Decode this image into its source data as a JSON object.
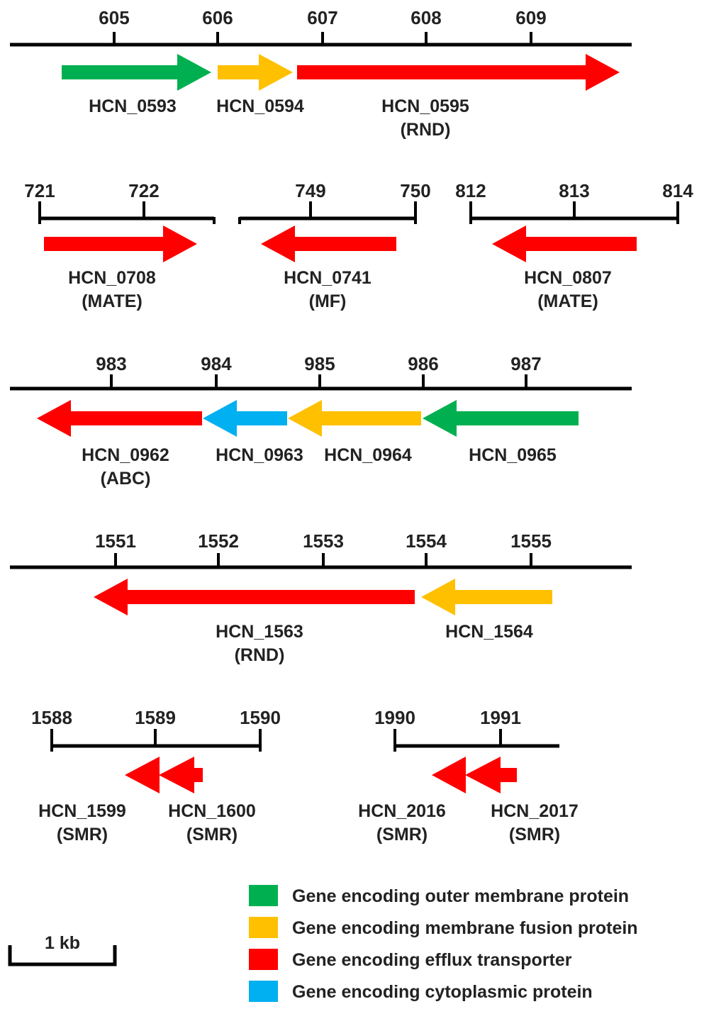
{
  "colors": {
    "outer": "#00B050",
    "fusion": "#FFC000",
    "efflux": "#FF0000",
    "cyto": "#00B0F0",
    "line": "#000000"
  },
  "tracks": [
    {
      "ticks": [
        "605",
        "606",
        "607",
        "608",
        "609"
      ],
      "genes": [
        {
          "name": "HCN_0593",
          "family": "",
          "role": "outer",
          "strand": "+"
        },
        {
          "name": "HCN_0594",
          "family": "",
          "role": "fusion",
          "strand": "+"
        },
        {
          "name": "HCN_0595",
          "family": "(RND)",
          "role": "efflux",
          "strand": "+"
        }
      ]
    },
    {
      "ticks": [
        "721",
        "722"
      ],
      "genes": [
        {
          "name": "HCN_0708",
          "family": "(MATE)",
          "role": "efflux",
          "strand": "+"
        }
      ]
    },
    {
      "ticks": [
        "749",
        "750"
      ],
      "genes": [
        {
          "name": "HCN_0741",
          "family": "(MF)",
          "role": "efflux",
          "strand": "-"
        }
      ]
    },
    {
      "ticks": [
        "812",
        "813",
        "814"
      ],
      "genes": [
        {
          "name": "HCN_0807",
          "family": "(MATE)",
          "role": "efflux",
          "strand": "-"
        }
      ]
    },
    {
      "ticks": [
        "983",
        "984",
        "985",
        "986",
        "987"
      ],
      "genes": [
        {
          "name": "HCN_0962",
          "family": "(ABC)",
          "role": "efflux",
          "strand": "-"
        },
        {
          "name": "HCN_0963",
          "family": "",
          "role": "cyto",
          "strand": "-"
        },
        {
          "name": "HCN_0964",
          "family": "",
          "role": "fusion",
          "strand": "-"
        },
        {
          "name": "HCN_0965",
          "family": "",
          "role": "outer",
          "strand": "-"
        }
      ]
    },
    {
      "ticks": [
        "1551",
        "1552",
        "1553",
        "1554",
        "1555"
      ],
      "genes": [
        {
          "name": "HCN_1563",
          "family": "(RND)",
          "role": "efflux",
          "strand": "-"
        },
        {
          "name": "HCN_1564",
          "family": "",
          "role": "fusion",
          "strand": "-"
        }
      ]
    },
    {
      "ticks": [
        "1588",
        "1589",
        "1590"
      ],
      "genes": [
        {
          "name": "HCN_1599",
          "family": "(SMR)",
          "role": "efflux",
          "strand": "-"
        },
        {
          "name": "HCN_1600",
          "family": "(SMR)",
          "role": "efflux",
          "strand": "-"
        }
      ]
    },
    {
      "ticks": [
        "1990",
        "1991"
      ],
      "genes": [
        {
          "name": "HCN_2016",
          "family": "(SMR)",
          "role": "efflux",
          "strand": "-"
        },
        {
          "name": "HCN_2017",
          "family": "(SMR)",
          "role": "efflux",
          "strand": "-"
        }
      ]
    }
  ],
  "scale_bar": {
    "label": "1 kb"
  },
  "legend": [
    {
      "role": "outer",
      "label": "Gene encoding outer membrane protein"
    },
    {
      "role": "fusion",
      "label": "Gene encoding membrane fusion protein"
    },
    {
      "role": "efflux",
      "label": "Gene encoding efflux transporter"
    },
    {
      "role": "cyto",
      "label": "Gene encoding cytoplasmic protein"
    }
  ]
}
